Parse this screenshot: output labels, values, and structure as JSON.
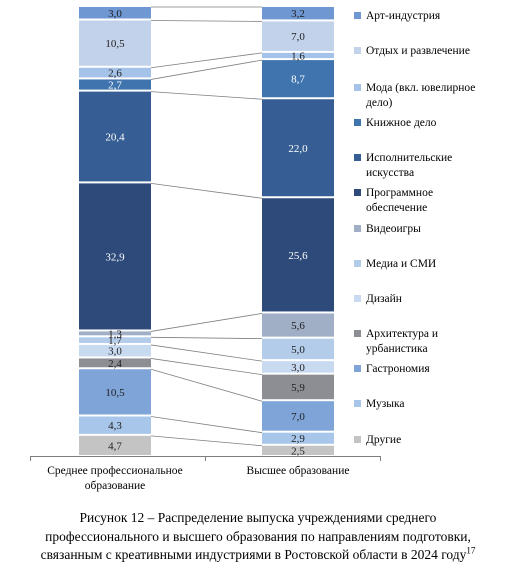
{
  "chart_data": {
    "type": "stacked_bar_100",
    "categories": [
      "Среднее профессиональное образование",
      "Высшее образование"
    ],
    "category_lines": [
      [
        "Среднее профессиональное",
        "образование"
      ],
      [
        "Высшее образование"
      ]
    ],
    "series": [
      {
        "name": "Другие",
        "color": "#C4C4C4",
        "values": [
          4.7,
          2.5
        ]
      },
      {
        "name": "Музыка",
        "color": "#A7C6EA",
        "values": [
          4.3,
          2.9
        ]
      },
      {
        "name": "Гастрономия",
        "color": "#7FA4D8",
        "values": [
          10.5,
          7.0
        ]
      },
      {
        "name": "Архитектура и урбанистика",
        "color": "#8D8E94",
        "values": [
          2.4,
          5.9
        ]
      },
      {
        "name": "Дизайн",
        "color": "#C8DAF0",
        "values": [
          3.0,
          3.0
        ]
      },
      {
        "name": "Медиа и СМИ",
        "color": "#B3CCEA",
        "values": [
          1.7,
          5.0
        ]
      },
      {
        "name": "Видеоигры",
        "color": "#A1AFC6",
        "values": [
          1.3,
          5.6
        ]
      },
      {
        "name": "Программное обеспечение",
        "color": "#2D4A7A",
        "values": [
          32.9,
          25.6
        ]
      },
      {
        "name": "Исполнительские искусства",
        "color": "#365E94",
        "values": [
          20.4,
          22.0
        ]
      },
      {
        "name": "Книжное дело",
        "color": "#3F74AE",
        "values": [
          2.7,
          8.7
        ]
      },
      {
        "name": "Мода (вкл. ювелирное дело)",
        "color": "#A5C2E8",
        "values": [
          2.6,
          1.6
        ]
      },
      {
        "name": "Отдых и развлечение",
        "color": "#C2D2EA",
        "values": [
          10.5,
          7.0
        ]
      },
      {
        "name": "Арт-индустрия",
        "color": "#6F98D3",
        "values": [
          3.0,
          3.2
        ]
      }
    ],
    "value_labels": [
      [
        "4,7",
        "4,3",
        "10,5",
        "2,4",
        "3,0",
        "1,7",
        "1,3",
        "32,9",
        "20,4",
        "2,7",
        "2,6",
        "10,5",
        "3,0"
      ],
      [
        "2,5",
        "2,9",
        "7,0",
        "5,9",
        "3,0",
        "5,0",
        "5,6",
        "25,6",
        "22,0",
        "8,7",
        "1,6",
        "7,0",
        "3,2"
      ]
    ],
    "legend": [
      {
        "label_lines": [
          "Арт-индустрия"
        ],
        "color": "#6F98D3"
      },
      {
        "label_lines": [
          "Отдых и развлечение"
        ],
        "color": "#C2D2EA"
      },
      {
        "label_lines": [
          "Мода (вкл. ювелирное",
          "дело)"
        ],
        "color": "#A5C2E8"
      },
      {
        "label_lines": [
          "Книжное дело"
        ],
        "color": "#3F74AE"
      },
      {
        "label_lines": [
          "Исполнительские",
          "искусства"
        ],
        "color": "#365E94"
      },
      {
        "label_lines": [
          "Программное",
          "обеспечение"
        ],
        "color": "#2D4A7A"
      },
      {
        "label_lines": [
          "Видеоигры"
        ],
        "color": "#A1AFC6"
      },
      {
        "label_lines": [
          "Медиа и СМИ"
        ],
        "color": "#B3CCEA"
      },
      {
        "label_lines": [
          "Дизайн"
        ],
        "color": "#C8DAF0"
      },
      {
        "label_lines": [
          "Архитектура и",
          "урбанистика"
        ],
        "color": "#8D8E94"
      },
      {
        "label_lines": [
          "Гастрономия"
        ],
        "color": "#7FA4D8"
      },
      {
        "label_lines": [
          "Музыка"
        ],
        "color": "#A7C6EA"
      },
      {
        "label_lines": [
          "Другие"
        ],
        "color": "#C4C4C4"
      }
    ],
    "legend_placement": "right",
    "connector_lines": true,
    "grid": false
  },
  "caption": {
    "line1": "Рисунок 12 – Распределение выпуска учреждениями среднего",
    "line2": "профессионального и высшего образования по направлениям подготовки,",
    "line3": "связанным с креативными индустриями в Ростовской области в 2024 году",
    "footnote": "17"
  }
}
